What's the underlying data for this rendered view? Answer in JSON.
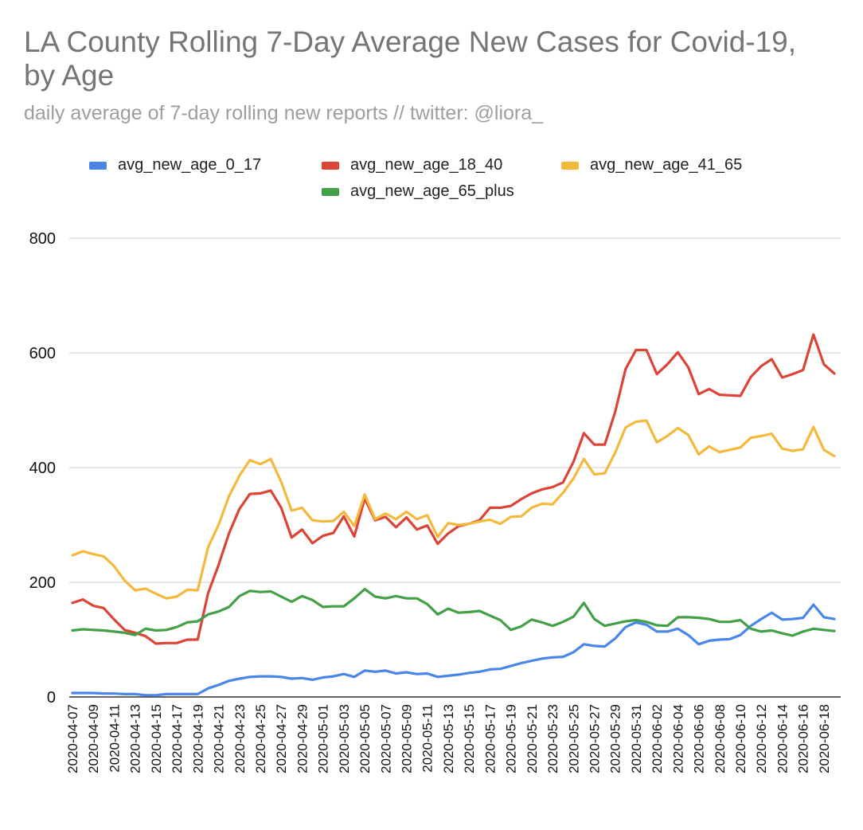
{
  "chart_data": {
    "type": "line",
    "title": "LA County Rolling 7-Day Average New Cases for Covid-19, by Age",
    "subtitle": "daily average of 7-day rolling new reports // twitter: @liora_",
    "xlabel": "",
    "ylabel": "",
    "ylim": [
      0,
      800
    ],
    "yticks": [
      0,
      200,
      400,
      600,
      800
    ],
    "grid": true,
    "legend_position": "top",
    "x": [
      "2020-04-07",
      "2020-04-08",
      "2020-04-09",
      "2020-04-10",
      "2020-04-11",
      "2020-04-12",
      "2020-04-13",
      "2020-04-14",
      "2020-04-15",
      "2020-04-16",
      "2020-04-17",
      "2020-04-18",
      "2020-04-19",
      "2020-04-20",
      "2020-04-21",
      "2020-04-22",
      "2020-04-23",
      "2020-04-24",
      "2020-04-25",
      "2020-04-26",
      "2020-04-27",
      "2020-04-28",
      "2020-04-29",
      "2020-04-30",
      "2020-05-01",
      "2020-05-02",
      "2020-05-03",
      "2020-05-04",
      "2020-05-05",
      "2020-05-06",
      "2020-05-07",
      "2020-05-08",
      "2020-05-09",
      "2020-05-10",
      "2020-05-11",
      "2020-05-12",
      "2020-05-13",
      "2020-05-14",
      "2020-05-15",
      "2020-05-16",
      "2020-05-17",
      "2020-05-18",
      "2020-05-19",
      "2020-05-20",
      "2020-05-21",
      "2020-05-22",
      "2020-05-23",
      "2020-05-24",
      "2020-05-25",
      "2020-05-26",
      "2020-05-27",
      "2020-05-28",
      "2020-05-29",
      "2020-05-30",
      "2020-05-31",
      "2020-06-01",
      "2020-06-02",
      "2020-06-03",
      "2020-06-04",
      "2020-06-05",
      "2020-06-06",
      "2020-06-07",
      "2020-06-08",
      "2020-06-09",
      "2020-06-10",
      "2020-06-11",
      "2020-06-12",
      "2020-06-13",
      "2020-06-14",
      "2020-06-15",
      "2020-06-16",
      "2020-06-17",
      "2020-06-18",
      "2020-06-19"
    ],
    "x_tick_labels": [
      "2020-04-07",
      "2020-04-09",
      "2020-04-11",
      "2020-04-13",
      "2020-04-15",
      "2020-04-17",
      "2020-04-19",
      "2020-04-21",
      "2020-04-23",
      "2020-04-25",
      "2020-04-27",
      "2020-04-29",
      "2020-05-01",
      "2020-05-03",
      "2020-05-05",
      "2020-05-07",
      "2020-05-09",
      "2020-05-11",
      "2020-05-13",
      "2020-05-15",
      "2020-05-17",
      "2020-05-19",
      "2020-05-21",
      "2020-05-23",
      "2020-05-25",
      "2020-05-27",
      "2020-05-29",
      "2020-05-31",
      "2020-06-02",
      "2020-06-04",
      "2020-06-06",
      "2020-06-08",
      "2020-06-10",
      "2020-06-12",
      "2020-06-14",
      "2020-06-16",
      "2020-06-18"
    ],
    "series": [
      {
        "name": "avg_new_age_0_17",
        "color": "#4a86e8",
        "values": [
          7,
          7,
          7,
          6,
          6,
          5,
          5,
          3,
          3,
          5,
          5,
          5,
          5,
          15,
          21,
          28,
          32,
          35,
          36,
          36,
          35,
          32,
          33,
          30,
          34,
          36,
          40,
          35,
          46,
          44,
          46,
          41,
          43,
          40,
          41,
          35,
          37,
          39,
          42,
          44,
          48,
          49,
          54,
          59,
          63,
          67,
          69,
          70,
          78,
          92,
          89,
          88,
          102,
          122,
          130,
          126,
          114,
          114,
          119,
          108,
          92,
          98,
          100,
          101,
          108,
          124,
          136,
          147,
          135,
          136,
          138,
          161,
          139,
          136
        ]
      },
      {
        "name": "avg_new_age_18_40",
        "color": "#db4437",
        "values": [
          164,
          170,
          159,
          155,
          135,
          117,
          112,
          106,
          93,
          94,
          94,
          100,
          100,
          181,
          230,
          285,
          328,
          354,
          355,
          360,
          330,
          278,
          292,
          268,
          281,
          286,
          315,
          280,
          346,
          308,
          314,
          296,
          313,
          292,
          299,
          267,
          285,
          298,
          302,
          308,
          330,
          330,
          333,
          345,
          355,
          362,
          366,
          374,
          410,
          460,
          440,
          440,
          497,
          572,
          605,
          605,
          563,
          580,
          601,
          575,
          528,
          537,
          527,
          526,
          525,
          558,
          577,
          589,
          557,
          563,
          570,
          632,
          580,
          564
        ]
      },
      {
        "name": "avg_new_age_41_65",
        "color": "#f4b93c",
        "values": [
          247,
          254,
          249,
          245,
          228,
          203,
          186,
          189,
          180,
          172,
          175,
          187,
          186,
          261,
          300,
          350,
          386,
          413,
          406,
          415,
          375,
          325,
          330,
          308,
          306,
          307,
          323,
          298,
          353,
          310,
          320,
          310,
          323,
          310,
          317,
          279,
          303,
          300,
          302,
          306,
          309,
          302,
          314,
          315,
          330,
          337,
          336,
          356,
          381,
          415,
          388,
          390,
          426,
          470,
          480,
          482,
          444,
          455,
          469,
          457,
          423,
          437,
          427,
          431,
          435,
          452,
          455,
          459,
          433,
          429,
          432,
          471,
          431,
          420
        ]
      },
      {
        "name": "avg_new_age_65_plus",
        "color": "#43a047",
        "values": [
          116,
          118,
          117,
          116,
          114,
          112,
          108,
          119,
          116,
          117,
          122,
          130,
          132,
          144,
          149,
          157,
          176,
          185,
          183,
          184,
          175,
          166,
          176,
          169,
          157,
          158,
          158,
          172,
          188,
          175,
          172,
          176,
          172,
          172,
          162,
          144,
          154,
          147,
          148,
          150,
          142,
          134,
          117,
          123,
          135,
          130,
          124,
          131,
          140,
          164,
          136,
          124,
          128,
          132,
          134,
          131,
          125,
          124,
          139,
          139,
          138,
          136,
          131,
          131,
          134,
          119,
          114,
          116,
          111,
          107,
          114,
          119,
          117,
          115
        ]
      }
    ]
  }
}
